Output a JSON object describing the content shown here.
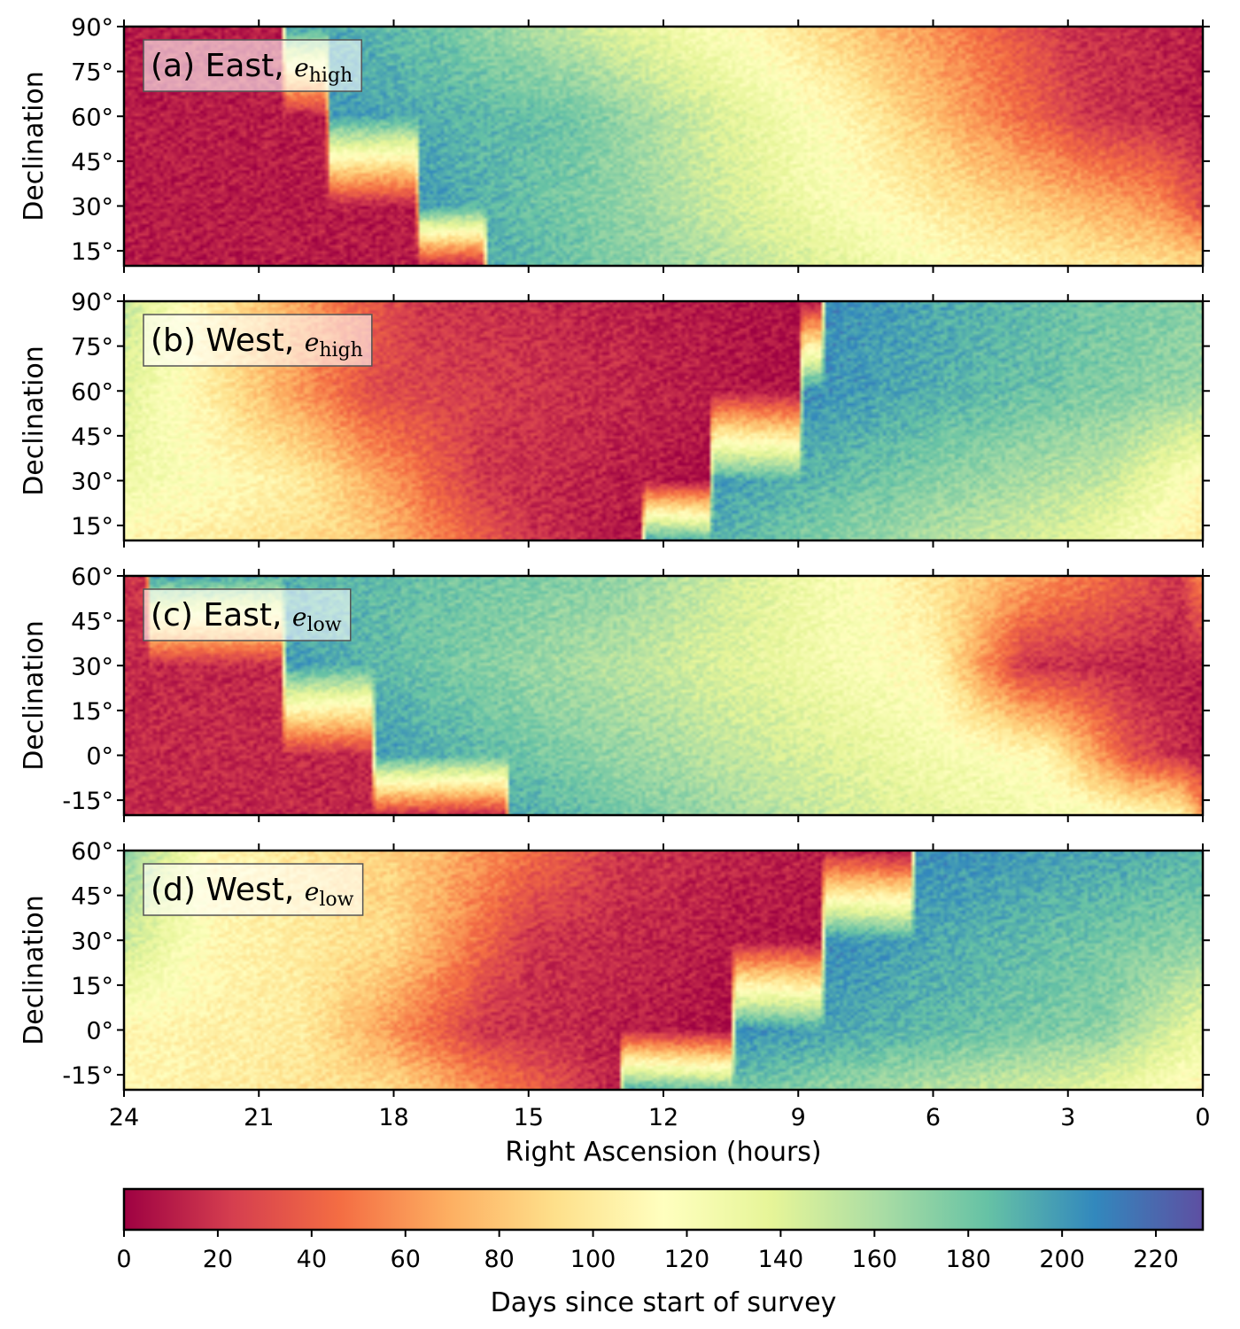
{
  "chart_data": {
    "type": "heatmap",
    "panels": [
      {
        "id": "a",
        "label_prefix": "(a) East, ",
        "label_math_base": "e",
        "label_math_sub": "high",
        "direction": "east",
        "ylabel": "Declination",
        "ylim": [
          10,
          90
        ],
        "yticks": [
          15,
          30,
          45,
          60,
          75,
          90
        ],
        "ytick_labels": [
          "15°",
          "30°",
          "45°",
          "60°",
          "75°",
          "90°"
        ],
        "day_pattern": [
          {
            "dec": 90,
            "ra": [
              24,
              20.5,
              20.4,
              17,
              10,
              3,
              0
            ],
            "day": [
              10,
              10,
              200,
              180,
              110,
              20,
              10
            ]
          },
          {
            "dec": 60,
            "ra": [
              24,
              19.5,
              19.4,
              14,
              8,
              2.5,
              0
            ],
            "day": [
              10,
              10,
              200,
              180,
              110,
              20,
              10
            ]
          },
          {
            "dec": 30,
            "ra": [
              24,
              17.5,
              17.4,
              13,
              7,
              1,
              0
            ],
            "day": [
              10,
              10,
              200,
              170,
              110,
              60,
              30
            ]
          },
          {
            "dec": 10,
            "ra": [
              24,
              16,
              15.9,
              11,
              5,
              0
            ],
            "day": [
              10,
              10,
              195,
              160,
              110,
              90
            ]
          }
        ]
      },
      {
        "id": "b",
        "label_prefix": "(b) West, ",
        "label_math_base": "e",
        "label_math_sub": "high",
        "direction": "west",
        "ylabel": "Declination",
        "ylim": [
          10,
          90
        ],
        "yticks": [
          15,
          30,
          45,
          60,
          75,
          90
        ],
        "ytick_labels": [
          "15°",
          "30°",
          "45°",
          "60°",
          "75°",
          "90°"
        ],
        "day_pattern": [
          {
            "dec": 90,
            "ra": [
              24,
              22,
              17.5,
              8.5,
              8.4,
              0
            ],
            "day": [
              150,
              100,
              20,
              5,
              205,
              170
            ]
          },
          {
            "dec": 60,
            "ra": [
              24,
              22,
              18.5,
              9,
              8.9,
              0
            ],
            "day": [
              140,
              100,
              30,
              5,
              205,
              165
            ]
          },
          {
            "dec": 30,
            "ra": [
              24,
              20,
              16,
              11,
              10.9,
              2,
              0
            ],
            "day": [
              130,
              100,
              20,
              5,
              200,
              150,
              110
            ]
          },
          {
            "dec": 10,
            "ra": [
              24,
              19,
              15,
              12.5,
              12.4,
              3,
              0
            ],
            "day": [
              110,
              90,
              20,
              5,
              200,
              140,
              100
            ]
          }
        ]
      },
      {
        "id": "c",
        "label_prefix": "(c) East, ",
        "label_math_base": "e",
        "label_math_sub": "low",
        "direction": "east",
        "ylabel": "Declination",
        "ylim": [
          -20,
          60
        ],
        "yticks": [
          -15,
          0,
          15,
          30,
          45,
          60
        ],
        "ytick_labels": [
          "-15°",
          "0°",
          "15°",
          "30°",
          "45°",
          "60°"
        ],
        "day_pattern": [
          {
            "dec": 60,
            "ra": [
              24,
              23.5,
              23.4,
              13,
              7,
              0.5,
              0
            ],
            "day": [
              20,
              20,
              200,
              170,
              110,
              20,
              60
            ]
          },
          {
            "dec": 30,
            "ra": [
              24,
              20.5,
              20.4,
              12,
              6,
              4,
              0
            ],
            "day": [
              15,
              15,
              200,
              150,
              110,
              20,
              10
            ]
          },
          {
            "dec": 0,
            "ra": [
              24,
              18.5,
              18.4,
              10,
              3.5,
              1.5,
              0
            ],
            "day": [
              15,
              15,
              200,
              150,
              110,
              30,
              10
            ]
          },
          {
            "dec": -20,
            "ra": [
              24,
              15.5,
              15.4,
              7,
              0.5,
              0
            ],
            "day": [
              15,
              15,
              195,
              140,
              110,
              60
            ]
          }
        ]
      },
      {
        "id": "d",
        "label_prefix": "(d) West, ",
        "label_math_base": "e",
        "label_math_sub": "low",
        "direction": "west",
        "ylabel": "Declination",
        "ylim": [
          -20,
          60
        ],
        "yticks": [
          -15,
          0,
          15,
          30,
          45,
          60
        ],
        "ytick_labels": [
          "-15°",
          "0°",
          "15°",
          "30°",
          "45°",
          "60°"
        ],
        "day_pattern": [
          {
            "dec": 60,
            "ra": [
              24,
              22,
              17.5,
              13,
              6.5,
              6.4,
              0
            ],
            "day": [
              170,
              110,
              80,
              20,
              5,
              205,
              190
            ]
          },
          {
            "dec": 30,
            "ra": [
              24,
              22,
              18,
              15,
              8.5,
              8.4,
              0
            ],
            "day": [
              150,
              110,
              90,
              20,
              5,
              205,
              170
            ]
          },
          {
            "dec": 0,
            "ra": [
              24,
              20,
              16,
              10.5,
              10.4,
              2,
              0
            ],
            "day": [
              110,
              100,
              20,
              5,
              205,
              170,
              130
            ]
          },
          {
            "dec": -20,
            "ra": [
              24,
              18,
              13,
              12.9,
              3,
              0
            ],
            "day": [
              110,
              90,
              10,
              195,
              140,
              110
            ]
          }
        ]
      }
    ],
    "xlabel": "Right Ascension (hours)",
    "xlim": [
      24,
      0
    ],
    "xticks": [
      24,
      21,
      18,
      15,
      12,
      9,
      6,
      3,
      0
    ],
    "xtick_labels": [
      "24",
      "21",
      "18",
      "15",
      "12",
      "9",
      "6",
      "3",
      "0"
    ],
    "colorbar": {
      "label": "Days since start of survey",
      "vmin": 0,
      "vmax": 230,
      "ticks": [
        0,
        20,
        40,
        60,
        80,
        100,
        120,
        140,
        160,
        180,
        200,
        220
      ],
      "tick_labels": [
        "0",
        "20",
        "40",
        "60",
        "80",
        "100",
        "120",
        "140",
        "160",
        "180",
        "200",
        "220"
      ],
      "colormap": "Spectral",
      "colors": [
        "#9e0142",
        "#d53e4f",
        "#f46d43",
        "#fdae61",
        "#fee08b",
        "#ffffbf",
        "#e6f598",
        "#abdda4",
        "#66c2a5",
        "#3288bd",
        "#5e4fa2"
      ]
    }
  }
}
